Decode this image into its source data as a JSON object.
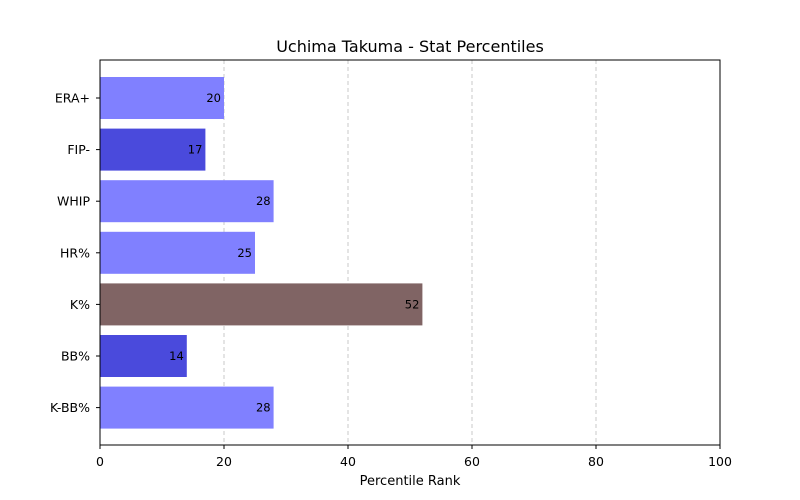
{
  "chart_data": {
    "type": "bar",
    "orientation": "horizontal",
    "title": "Uchima Takuma - Stat Percentiles",
    "xlabel": "Percentile Rank",
    "ylabel": "",
    "xlim": [
      0,
      100
    ],
    "xticks": [
      0,
      20,
      40,
      60,
      80,
      100
    ],
    "grid": "vertical-dashed",
    "categories": [
      "ERA+",
      "FIP-",
      "WHIP",
      "HR%",
      "K%",
      "BB%",
      "K-BB%"
    ],
    "values": [
      20,
      17,
      28,
      25,
      52,
      14,
      28
    ],
    "colors": [
      "#8080ff",
      "#4a4adc",
      "#8080ff",
      "#8080ff",
      "#806464",
      "#4a4adc",
      "#8080ff"
    ]
  }
}
